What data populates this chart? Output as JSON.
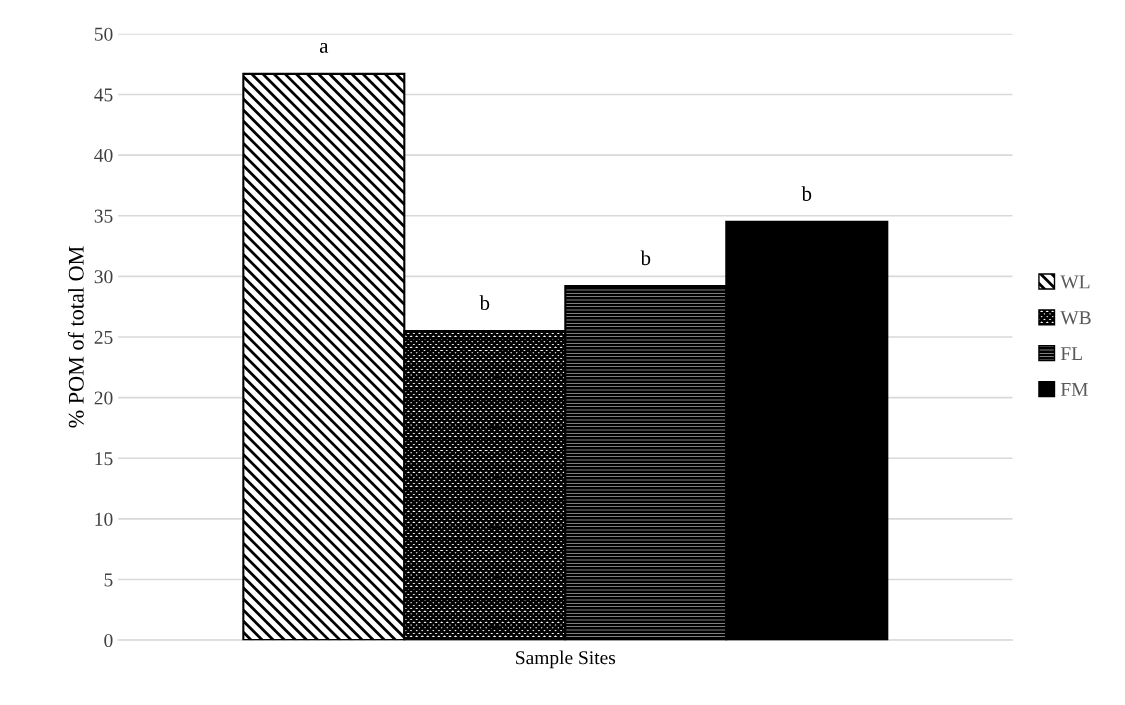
{
  "chart_data": {
    "type": "bar",
    "xlabel": "Sample Sites",
    "ylabel": "% POM of total OM",
    "categories": [
      null
    ],
    "series": [
      {
        "name": "WL",
        "color": "#000000",
        "values": [
          46.7
        ]
      },
      {
        "name": "WB",
        "color": "#000000",
        "values": [
          25.5
        ]
      },
      {
        "name": "FL",
        "color": "#000000",
        "values": [
          29.2
        ]
      },
      {
        "name": "FM",
        "color": "#000000",
        "values": [
          34.5
        ]
      }
    ],
    "annotations": [
      {
        "text": "a",
        "y": 46.7
      },
      {
        "text": "b",
        "y": 25.5
      },
      {
        "text": "b",
        "y": 29.2
      },
      {
        "text": "b",
        "y": 34.5
      }
    ],
    "ylim": [
      0,
      50
    ],
    "yticks": [
      0,
      5,
      10,
      15,
      20,
      25,
      30,
      35,
      40,
      45,
      50
    ],
    "grid": "y",
    "legend": "right"
  }
}
